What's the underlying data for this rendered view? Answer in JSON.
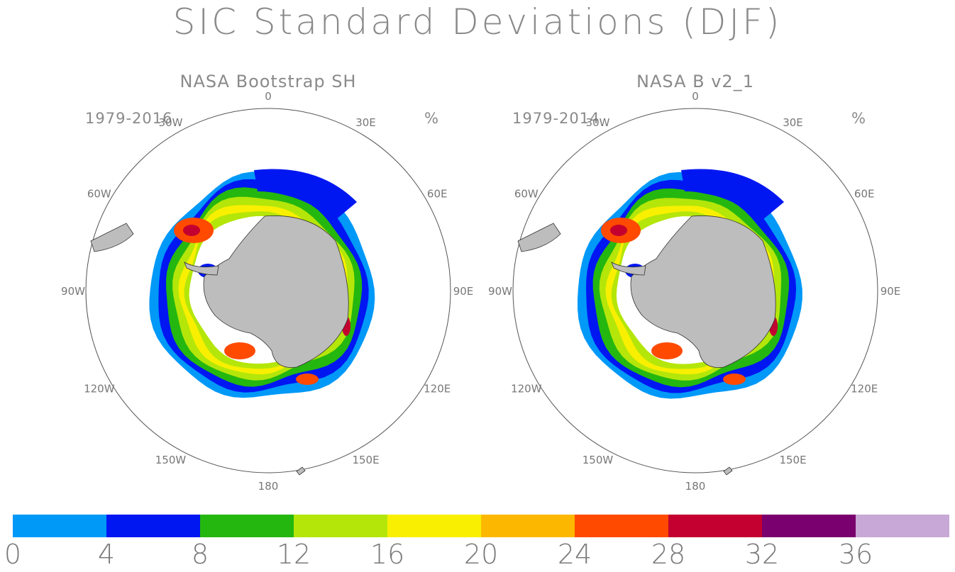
{
  "title": "SIC Standard Deviations (DJF)",
  "unit": "%",
  "panels": [
    {
      "title": "NASA Bootstrap SH",
      "period": "1979-2016"
    },
    {
      "title": "NASA B v2_1",
      "period": "1979-2014"
    }
  ],
  "longitude_labels": [
    "0",
    "30E",
    "60E",
    "90E",
    "120E",
    "150E",
    "180",
    "150W",
    "120W",
    "90W",
    "60W",
    "30W"
  ],
  "colorbar": {
    "colors": [
      "#0099f8",
      "#0017f2",
      "#24b70f",
      "#b4e60a",
      "#f8f000",
      "#fcb800",
      "#ff4a00",
      "#c3002f",
      "#7b006f",
      "#c8a8d6"
    ],
    "tick_labels": [
      "0",
      "4",
      "8",
      "12",
      "16",
      "20",
      "24",
      "28",
      "32",
      "36"
    ]
  },
  "land_color": "#bdbdbd"
}
